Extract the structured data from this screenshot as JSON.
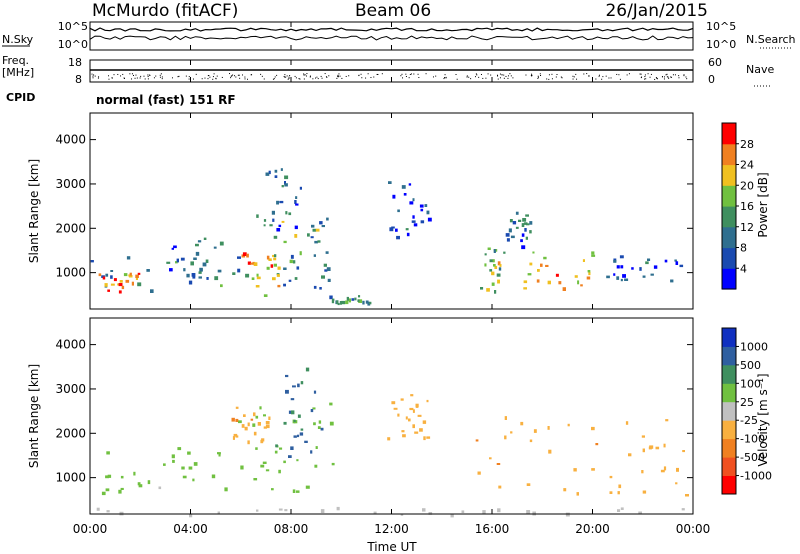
{
  "header": {
    "title": "McMurdo (fitACF)",
    "beam": "Beam 06",
    "date": "26/Jan/2015"
  },
  "status_panels": {
    "nsky_label": "N.Sky",
    "nsky_ticks": [
      "10^5",
      "10^0"
    ],
    "nsearch_label": "N.Search",
    "nsearch_ticks": [
      "10^5",
      "10^0"
    ],
    "freq_label": "Freq.",
    "freq_unit": "[MHz]",
    "freq_ticks": [
      "18",
      "8"
    ],
    "nave_label": "Nave",
    "nave_ticks": [
      "60",
      "0"
    ],
    "cpid_label": "CPID",
    "cpid_value": "normal (fast) 151 RF"
  },
  "chart_data": [
    {
      "type": "heatmap",
      "name": "power",
      "ylabel": "Slant Range [km]",
      "ylim": [
        180,
        4600
      ],
      "yticks": [
        "4000",
        "3000",
        "2000",
        "1000"
      ],
      "colorbar": {
        "label": "Power [dB]",
        "range": [
          0,
          32
        ],
        "ticks": [
          "28",
          "24",
          "20",
          "16",
          "12",
          "8",
          "4"
        ],
        "colors": [
          "#0000ff",
          "#1a4ab0",
          "#2f6f8f",
          "#3f8f5f",
          "#70c040",
          "#f0c020",
          "#f08020",
          "#ff0000"
        ]
      },
      "regions": [
        {
          "t0": 0.0,
          "t1": 9.6,
          "r0": 500,
          "r1": 1500,
          "value": 11
        },
        {
          "t0": 0.3,
          "t1": 2.0,
          "r0": 600,
          "r1": 1000,
          "value": 26
        },
        {
          "t0": 3.0,
          "t1": 5.2,
          "r0": 900,
          "r1": 1800,
          "value": 9
        },
        {
          "t0": 6.0,
          "t1": 7.5,
          "r0": 700,
          "r1": 1500,
          "value": 22
        },
        {
          "t0": 6.5,
          "t1": 9.0,
          "r0": 2000,
          "r1": 3400,
          "value": 8
        },
        {
          "t0": 7.0,
          "t1": 9.5,
          "r0": 900,
          "r1": 2500,
          "value": 14
        },
        {
          "t0": 11.8,
          "t1": 13.5,
          "r0": 1800,
          "r1": 3200,
          "value": 6
        },
        {
          "t0": 15.5,
          "t1": 16.5,
          "r0": 600,
          "r1": 1600,
          "value": 18
        },
        {
          "t0": 16.5,
          "t1": 17.5,
          "r0": 1600,
          "r1": 2400,
          "value": 9
        },
        {
          "t0": 17.2,
          "t1": 20.0,
          "r0": 600,
          "r1": 1500,
          "value": 22
        },
        {
          "t0": 20.5,
          "t1": 24.0,
          "r0": 800,
          "r1": 1400,
          "value": 6
        },
        {
          "t0": 9.5,
          "t1": 11.2,
          "r0": 300,
          "r1": 500,
          "value": 12
        }
      ]
    },
    {
      "type": "heatmap",
      "name": "velocity",
      "ylabel": "Slant Range [km]",
      "ylim": [
        180,
        4600
      ],
      "yticks": [
        "4000",
        "3000",
        "2000",
        "1000"
      ],
      "colorbar": {
        "label": "Velocity [m s⁻¹]",
        "range": [
          -1200,
          1200
        ],
        "ticks": [
          "1000",
          "500",
          "100",
          "25",
          "-25",
          "-100",
          "-500",
          "-1000"
        ],
        "colors": [
          "#ff0000",
          "#f05020",
          "#f08020",
          "#f8b040",
          "#c0c0c0",
          "#70c040",
          "#3f8f5f",
          "#2f5fa0",
          "#1030c0"
        ]
      },
      "regions": [
        {
          "t0": 0.4,
          "t1": 5.4,
          "r0": 600,
          "r1": 1700,
          "value": 250
        },
        {
          "t0": 5.5,
          "t1": 9.8,
          "r0": 700,
          "r1": 2700,
          "value": 250
        },
        {
          "t0": 7.3,
          "t1": 9.2,
          "r0": 1400,
          "r1": 3500,
          "value": 700
        },
        {
          "t0": 5.6,
          "t1": 7.2,
          "r0": 1800,
          "r1": 2600,
          "value": -300
        },
        {
          "t0": 11.8,
          "t1": 13.4,
          "r0": 1800,
          "r1": 2900,
          "value": -300
        },
        {
          "t0": 15.2,
          "t1": 24.0,
          "r0": 600,
          "r1": 2400,
          "value": -300
        },
        {
          "t0": 0.0,
          "t1": 24.0,
          "r0": 180,
          "r1": 350,
          "value": 0
        }
      ]
    }
  ],
  "xaxis": {
    "label": "Time UT",
    "range": [
      0,
      24
    ],
    "ticks": [
      "00:00",
      "04:00",
      "08:00",
      "12:00",
      "16:00",
      "20:00",
      "00:00"
    ]
  }
}
